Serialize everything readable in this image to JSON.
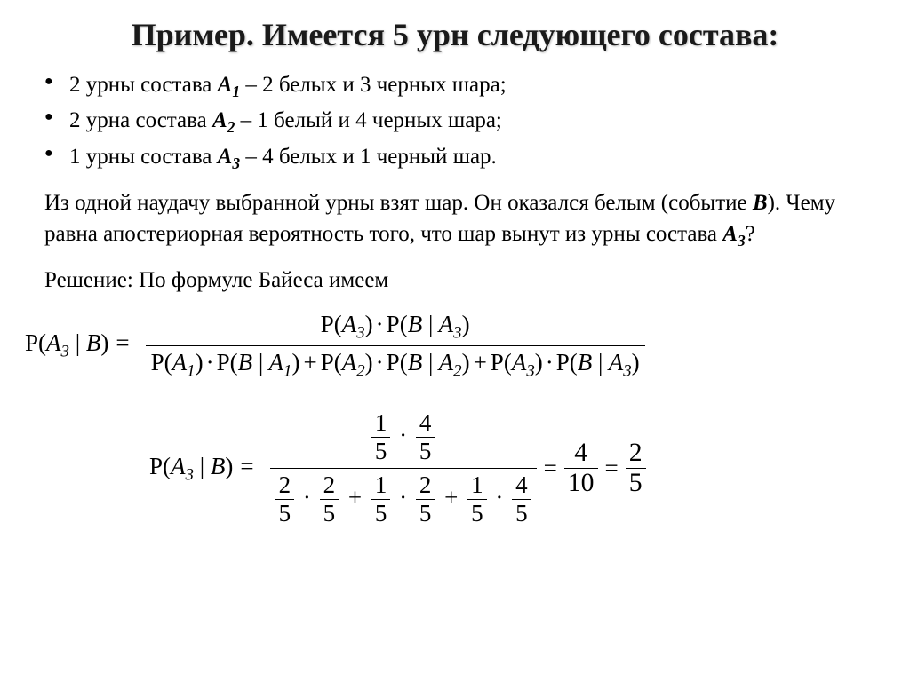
{
  "title": "Пример. Имеется 5 урн следующего состава:",
  "bullets": [
    {
      "prefix": "2 урны состава ",
      "var": "A",
      "sub": "1",
      "suffix": " – 2 белых и 3 черных шара;"
    },
    {
      "prefix": "2 урна состава ",
      "var": "A",
      "sub": "2",
      "suffix": " – 1 белый и 4 черных шара;"
    },
    {
      "prefix": "1 урны состава ",
      "var": "A",
      "sub": "3",
      "suffix": " – 4 белых и 1 черный шар."
    }
  ],
  "question": {
    "part1": "Из одной наудачу выбранной урны взят шар. Он оказался белым (событие ",
    "eventVar": "B",
    "part2": "). Чему равна апостериорная вероятность того, что шар вынут из урны состава ",
    "urnVar": "A",
    "urnSub": "3",
    "tail": "?"
  },
  "solutionIntro": "Решение: По формуле Байеса имеем",
  "formula1": {
    "lhs": "P(A₃ | B) =",
    "numerator": "P(A₃) · P(B | A₃)",
    "denominator": "P(A₁) · P(B | A₁) + P(A₂) · P(B | A₂) + P(A₃) · P(B | A₃)"
  },
  "formula2": {
    "lhs": "P(A₃ | B) =",
    "numTerms": [
      {
        "n": "1",
        "d": "5"
      },
      {
        "n": "4",
        "d": "5"
      }
    ],
    "denTerms": [
      [
        {
          "n": "2",
          "d": "5"
        },
        {
          "n": "2",
          "d": "5"
        }
      ],
      [
        {
          "n": "1",
          "d": "5"
        },
        {
          "n": "2",
          "d": "5"
        }
      ],
      [
        {
          "n": "1",
          "d": "5"
        },
        {
          "n": "4",
          "d": "5"
        }
      ]
    ],
    "result1": {
      "n": "4",
      "d": "10"
    },
    "result2": {
      "n": "2",
      "d": "5"
    }
  },
  "style": {
    "title_fontsize": 36,
    "body_fontsize": 25,
    "formula_fontsize": 27,
    "text_color": "#000000",
    "background_color": "#ffffff"
  }
}
